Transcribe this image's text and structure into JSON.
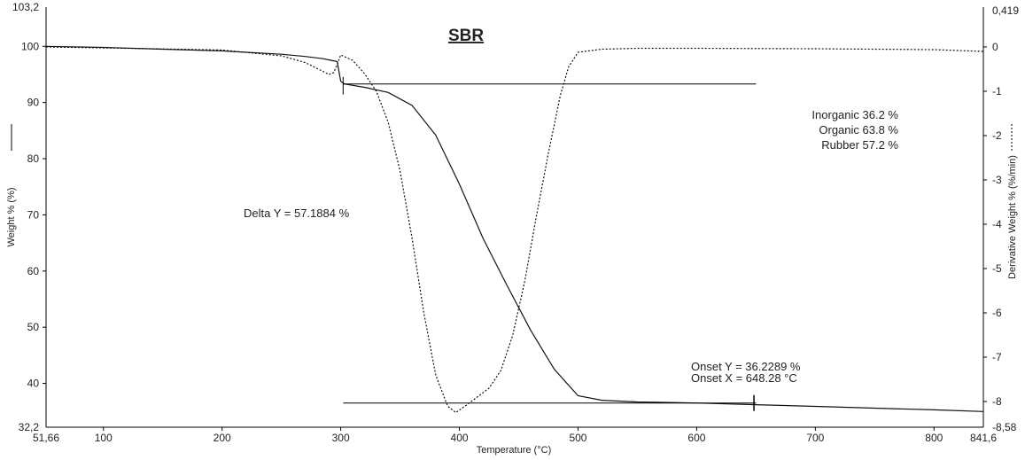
{
  "chart_data": {
    "type": "line",
    "title": "SBR",
    "xlabel": "Temperature (°C)",
    "ylabel": "Weight % (%)",
    "y2label": "Derivative Weight % (%/min)",
    "xlim": [
      51.66,
      841.6
    ],
    "ylim": [
      32.2,
      103.2
    ],
    "y2lim": [
      -8.58,
      0.419
    ],
    "x_ticks": [
      100,
      200,
      300,
      400,
      500,
      600,
      700,
      800
    ],
    "x_edge_labels": [
      "51,66",
      "841,6"
    ],
    "y_ticks": [
      40,
      50,
      60,
      70,
      80,
      90,
      100
    ],
    "y_edge_labels": [
      "32,2",
      "103,2"
    ],
    "y2_ticks": [
      -8,
      -7,
      -6,
      -5,
      -4,
      -3,
      -2,
      -1,
      0
    ],
    "y2_edge_labels": [
      "-8,58",
      "0,419"
    ],
    "grid": false,
    "series": [
      {
        "axis": "left",
        "style": "solid",
        "x": [
          51.66,
          100,
          150,
          200,
          250,
          270,
          285,
          292,
          297,
          300,
          303,
          320,
          340,
          360,
          380,
          400,
          420,
          440,
          460,
          480,
          500,
          520,
          550,
          600,
          650,
          700,
          750,
          800,
          841.6
        ],
        "y": [
          100,
          99.8,
          99.5,
          99.2,
          98.6,
          98.2,
          97.8,
          97.5,
          97.3,
          93.8,
          93.3,
          92.7,
          91.8,
          89.5,
          84.2,
          75.5,
          65.8,
          57.5,
          49.5,
          42.5,
          37.8,
          37.0,
          36.7,
          36.5,
          36.2,
          35.9,
          35.6,
          35.3,
          35.0
        ]
      },
      {
        "axis": "right",
        "style": "dotted",
        "x": [
          51.66,
          100,
          200,
          250,
          270,
          285,
          290,
          294,
          297,
          300,
          310,
          320,
          330,
          340,
          350,
          360,
          370,
          380,
          390,
          397,
          405,
          415,
          425,
          435,
          445,
          455,
          465,
          475,
          485,
          492,
          500,
          520,
          550,
          600,
          700,
          800,
          841.6
        ],
        "y": [
          0,
          -0.02,
          -0.07,
          -0.2,
          -0.35,
          -0.55,
          -0.62,
          -0.58,
          -0.4,
          -0.18,
          -0.3,
          -0.6,
          -1.0,
          -1.7,
          -2.8,
          -4.3,
          -6.0,
          -7.4,
          -8.1,
          -8.25,
          -8.1,
          -7.9,
          -7.7,
          -7.3,
          -6.5,
          -5.3,
          -3.8,
          -2.4,
          -1.1,
          -0.45,
          -0.12,
          -0.05,
          -0.03,
          -0.03,
          -0.04,
          -0.06,
          -0.1
        ]
      }
    ],
    "annotations": {
      "delta_y": "Delta Y = 57.1884 %",
      "onset_y": "Onset Y = 36.2289 %",
      "onset_x": "Onset X = 648.28 °C",
      "inorganic": "Inorganic 36.2 %",
      "organic": "Organic 63.8 %",
      "rubber": "Rubber 57.2 %"
    },
    "marker_lines": {
      "upper": {
        "x": [
          302,
          650
        ],
        "y": 93.3
      },
      "lower": {
        "x": [
          302,
          650
        ],
        "y": 36.5
      },
      "delta_tick_x": 302,
      "onset_tick_x": 648.28
    }
  }
}
